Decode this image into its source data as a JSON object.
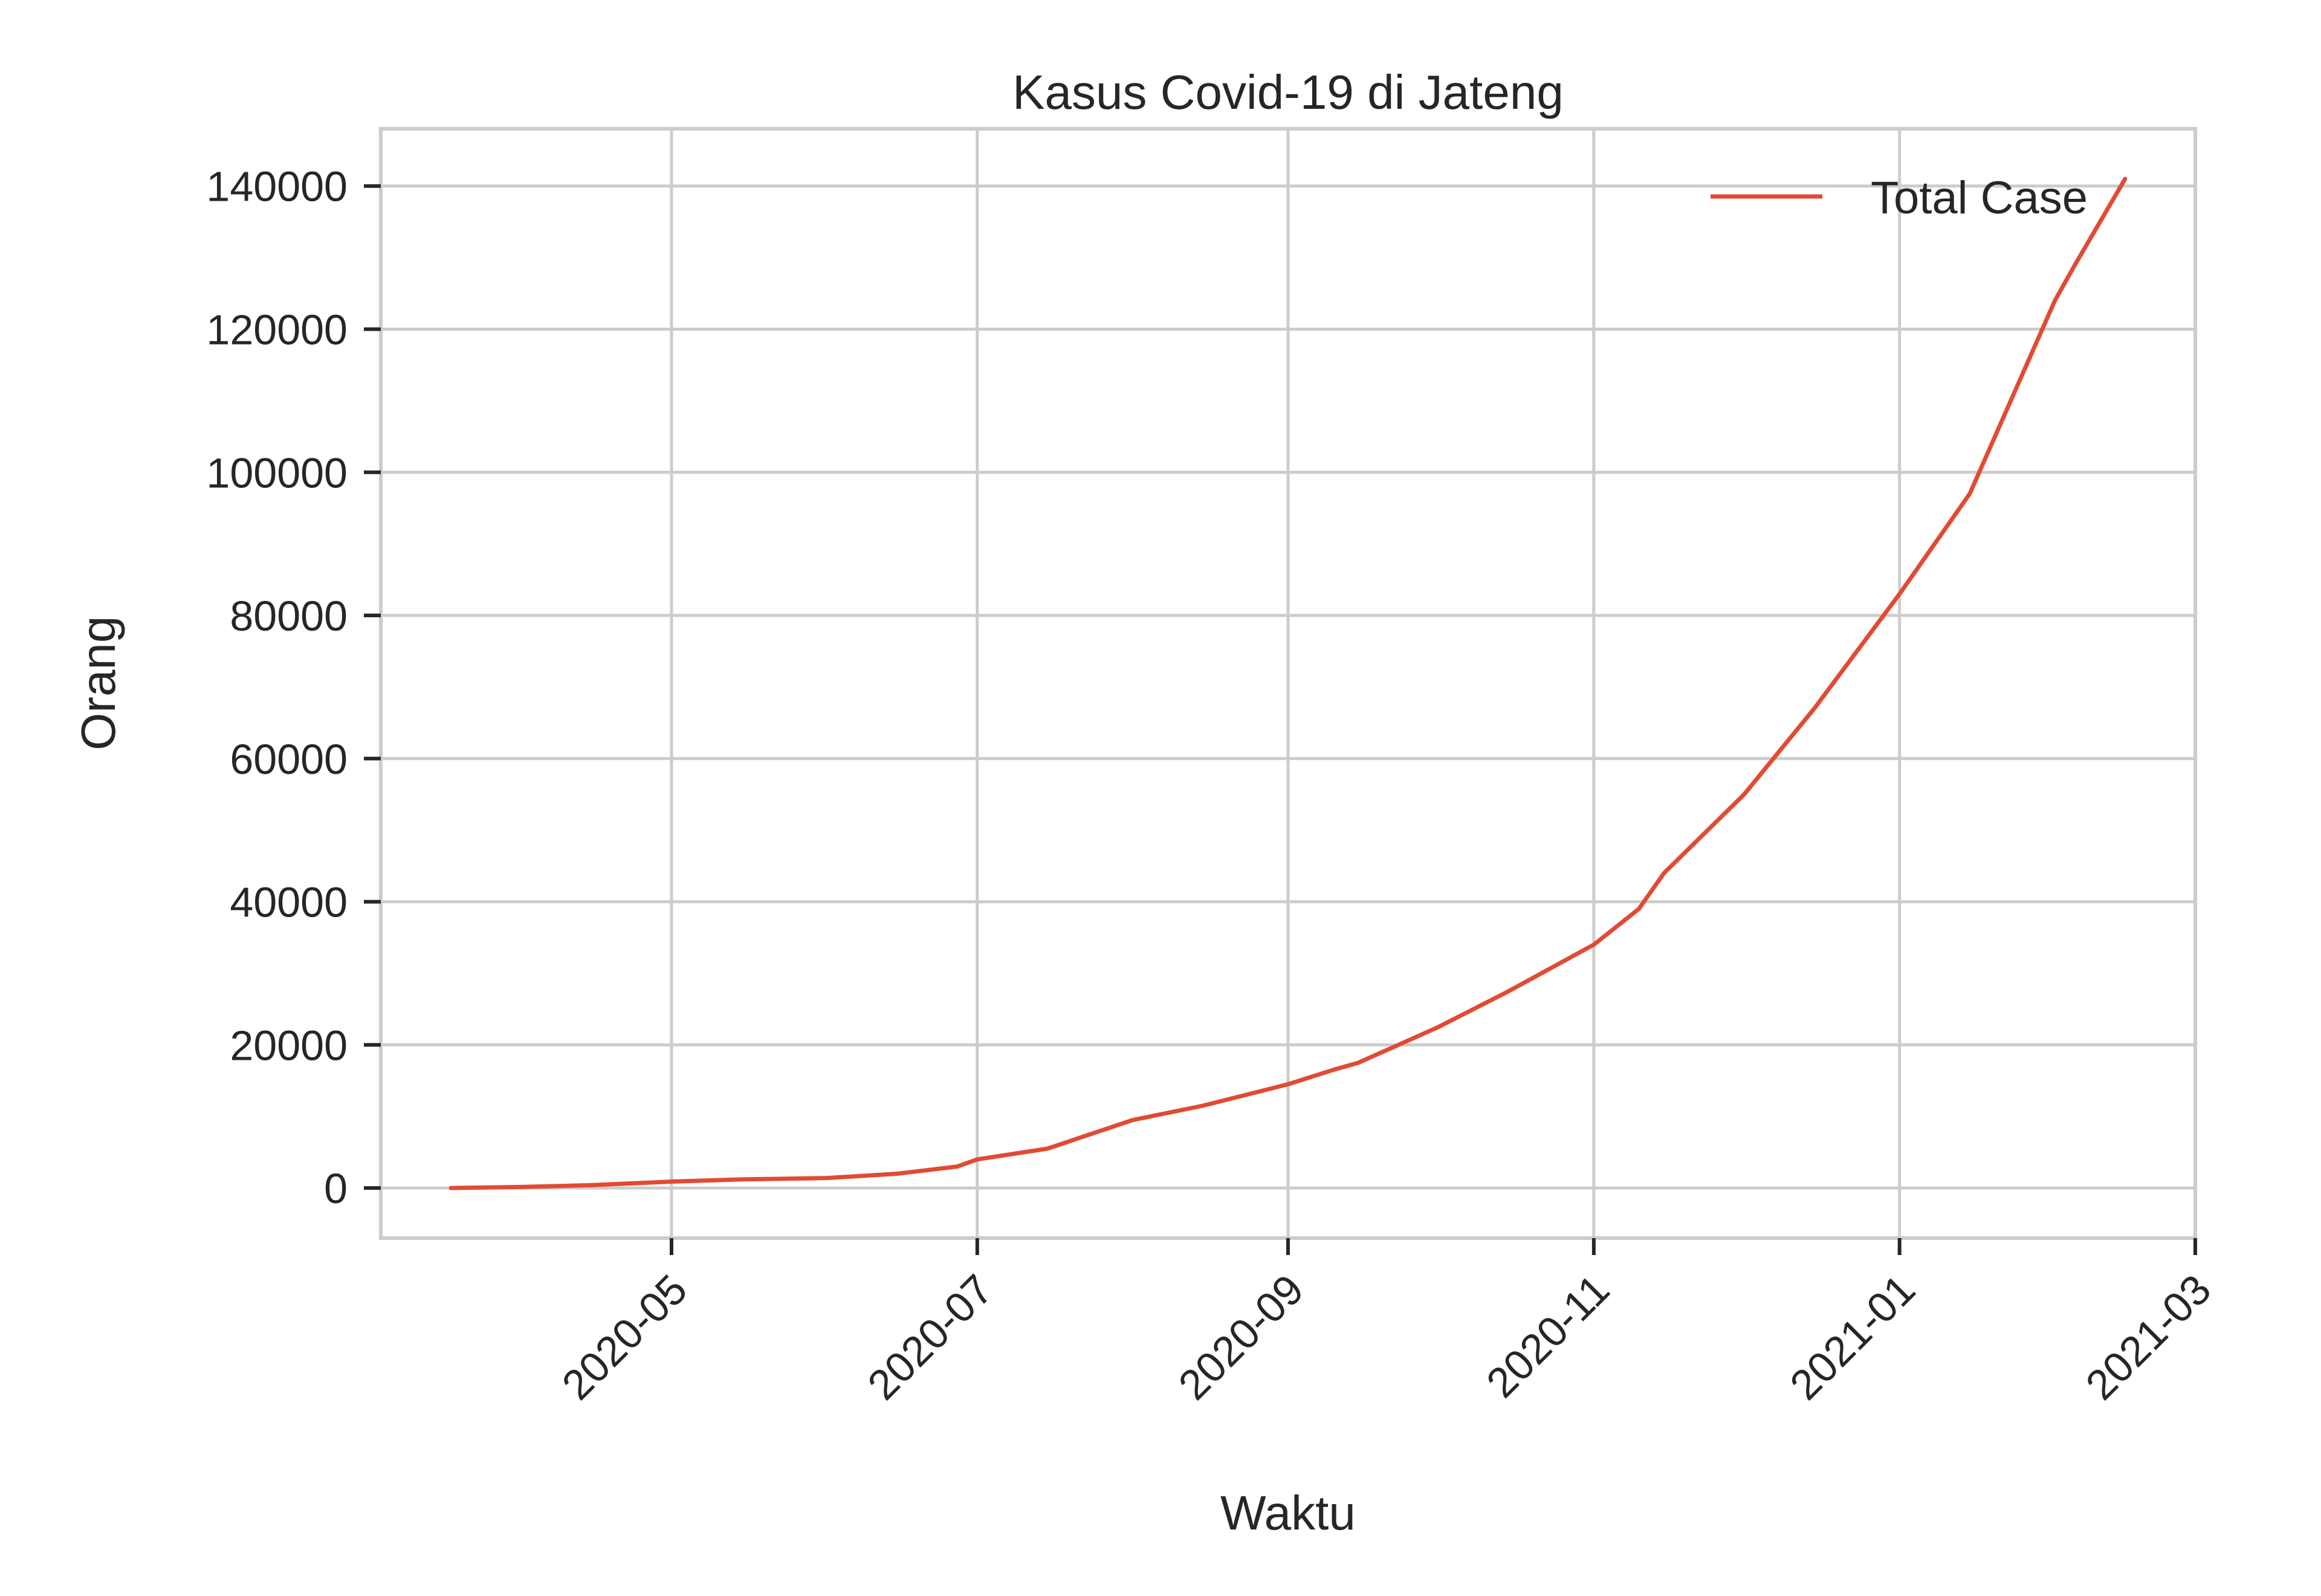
{
  "chart_data": {
    "type": "line",
    "title": "Kasus Covid-19 di Jateng",
    "xlabel": "Waktu",
    "ylabel": "Orang",
    "x_ticks": [
      "2020-05",
      "2020-07",
      "2020-09",
      "2020-11",
      "2021-01",
      "2021-03"
    ],
    "y_ticks": [
      "0",
      "20000",
      "40000",
      "60000",
      "80000",
      "100000",
      "120000",
      "140000"
    ],
    "xlim": [
      "2020-03-04",
      "2021-03-01"
    ],
    "ylim": [
      -7000,
      148000
    ],
    "grid": true,
    "legend_position": "top-right",
    "colors": {
      "series": "#e24a33",
      "grid": "#cccccc",
      "text": "#262626"
    },
    "series": [
      {
        "name": "Total Case",
        "x": [
          "2020-03-18",
          "2020-04-01",
          "2020-04-15",
          "2020-05-01",
          "2020-05-15",
          "2020-06-01",
          "2020-06-15",
          "2020-06-27",
          "2020-07-01",
          "2020-07-15",
          "2020-08-01",
          "2020-08-15",
          "2020-09-01",
          "2020-09-10",
          "2020-09-15",
          "2020-10-01",
          "2020-10-15",
          "2020-11-01",
          "2020-11-10",
          "2020-11-15",
          "2020-12-01",
          "2020-12-15",
          "2021-01-01",
          "2021-01-15",
          "2021-02-01",
          "2021-02-05",
          "2021-02-15"
        ],
        "values": [
          0,
          150,
          400,
          900,
          1200,
          1400,
          2000,
          3000,
          4000,
          5500,
          9500,
          11500,
          14500,
          16500,
          17500,
          22500,
          27500,
          34000,
          39000,
          44000,
          55000,
          67000,
          83000,
          97000,
          124000,
          129000,
          141000
        ]
      }
    ]
  }
}
